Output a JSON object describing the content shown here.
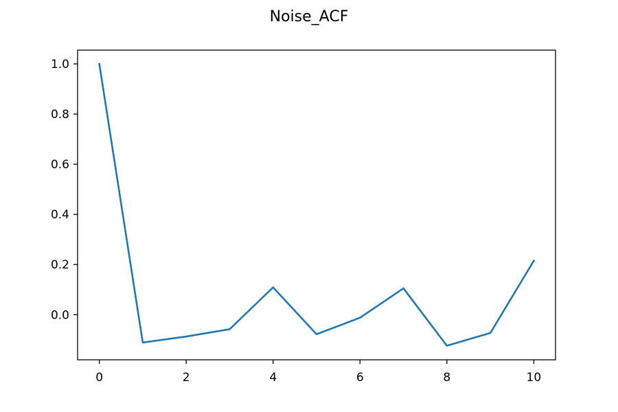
{
  "chart_data": {
    "type": "line",
    "title": "Noise_ACF",
    "xlabel": "",
    "ylabel": "",
    "xlim": [
      -0.5,
      10.5
    ],
    "ylim": [
      -0.18,
      1.055
    ],
    "xticks": [
      0,
      2,
      4,
      6,
      8,
      10
    ],
    "xtick_labels": [
      "0",
      "2",
      "4",
      "6",
      "8",
      "10"
    ],
    "yticks": [
      0.0,
      0.2,
      0.4,
      0.6,
      0.8,
      1.0
    ],
    "ytick_labels": [
      "0.0",
      "0.2",
      "0.4",
      "0.6",
      "0.8",
      "1.0"
    ],
    "grid": false,
    "x": [
      0,
      1,
      2,
      3,
      4,
      5,
      6,
      7,
      8,
      9,
      10
    ],
    "series": [
      {
        "values": [
          1.0,
          -0.111,
          -0.087,
          -0.058,
          0.109,
          -0.078,
          -0.012,
          0.105,
          -0.124,
          -0.073,
          0.215
        ],
        "color": "#1f77b4"
      }
    ]
  }
}
